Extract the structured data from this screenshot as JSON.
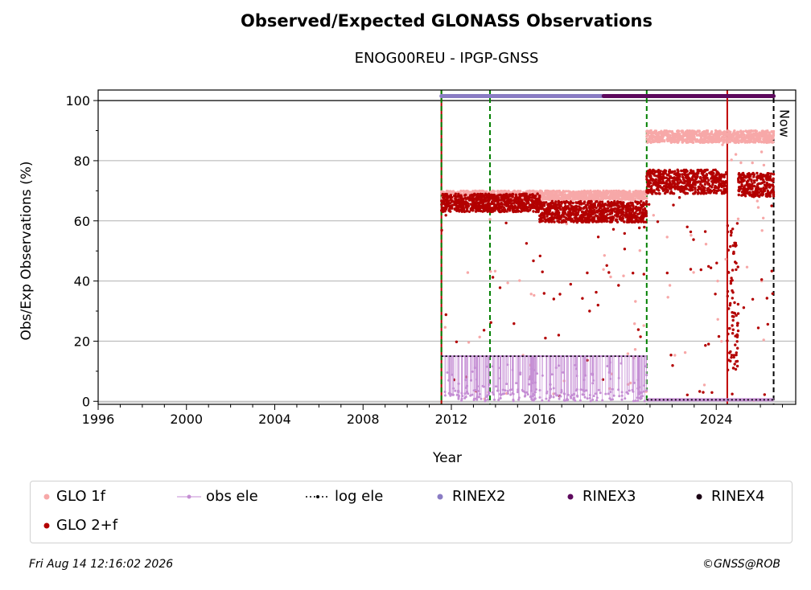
{
  "chart_data": {
    "type": "scatter",
    "title": "Observed/Expected GLONASS Observations",
    "subtitle": "ENOG00REU - IPGP-GNSS",
    "xlabel": "Year",
    "ylabel": "Obs/Exp Observations (%)",
    "xlim": [
      1996,
      2027.6
    ],
    "ylim": [
      -1,
      103.5
    ],
    "xticks": [
      1996,
      2000,
      2004,
      2008,
      2012,
      2016,
      2020,
      2024
    ],
    "yticks": [
      0,
      20,
      40,
      60,
      80,
      100
    ],
    "grid": "horizontal",
    "legend_position": "bottom",
    "series": [
      {
        "name": "GLO 1f",
        "color": "#f7a8a8",
        "segments": [
          {
            "x0": 2011.55,
            "x1": 2020.85,
            "y_mean": 68.5,
            "spread": 1.5
          },
          {
            "x0": 2020.85,
            "x1": 2026.6,
            "y_mean": 88.0,
            "spread": 2.0
          }
        ]
      },
      {
        "name": "obs ele",
        "color": "#c58ed4",
        "y_level_1": 15,
        "y_level_2": 0.5
      },
      {
        "name": "log ele",
        "color": "#000000",
        "y_level_1": 15,
        "y_level_2": 0.5
      },
      {
        "name": "RINEX2",
        "color": "#8a7cc4",
        "x0": 2011.55,
        "x1": 2018.9,
        "y": 101.5
      },
      {
        "name": "RINEX3",
        "color": "#5e0a5e",
        "x0": 2018.9,
        "x1": 2026.6,
        "y": 101.5
      },
      {
        "name": "RINEX4",
        "color": "#1a0014"
      },
      {
        "name": "GLO 2+f",
        "color": "#b30000",
        "segments": [
          {
            "x0": 2011.55,
            "x1": 2016.0,
            "y_mean": 66.0,
            "spread": 3.0
          },
          {
            "x0": 2016.0,
            "x1": 2020.85,
            "y_mean": 63.0,
            "spread": 3.5
          },
          {
            "x0": 2020.85,
            "x1": 2024.5,
            "y_mean": 73.0,
            "spread": 4.0
          },
          {
            "x0": 2024.5,
            "x1": 2025.0,
            "y_mean": 35.0,
            "spread": 25.0
          },
          {
            "x0": 2025.0,
            "x1": 2026.6,
            "y_mean": 72.0,
            "spread": 4.0
          }
        ]
      }
    ],
    "vertical_lines": [
      {
        "x": 2011.55,
        "color": "#b30000",
        "style": "solid"
      },
      {
        "x": 2011.55,
        "color": "#008000",
        "style": "dashed"
      },
      {
        "x": 2013.75,
        "color": "#008000",
        "style": "dashed"
      },
      {
        "x": 2020.85,
        "color": "#008000",
        "style": "dashed"
      },
      {
        "x": 2024.5,
        "color": "#c00000",
        "style": "solid"
      },
      {
        "x": 2026.6,
        "color": "#000000",
        "style": "dashed"
      }
    ],
    "annotations": [
      {
        "text": "Now",
        "x": 2026.6
      }
    ]
  },
  "legend": {
    "glo1f": "GLO 1f",
    "obs_ele": "obs ele",
    "log_ele": "log ele",
    "rinex2": "RINEX2",
    "rinex3": "RINEX3",
    "rinex4": "RINEX4",
    "glo2f": "GLO 2+f"
  },
  "footer": {
    "timestamp": "Fri Aug 14 12:16:02 2026",
    "credit": "©GNSS@ROB"
  }
}
